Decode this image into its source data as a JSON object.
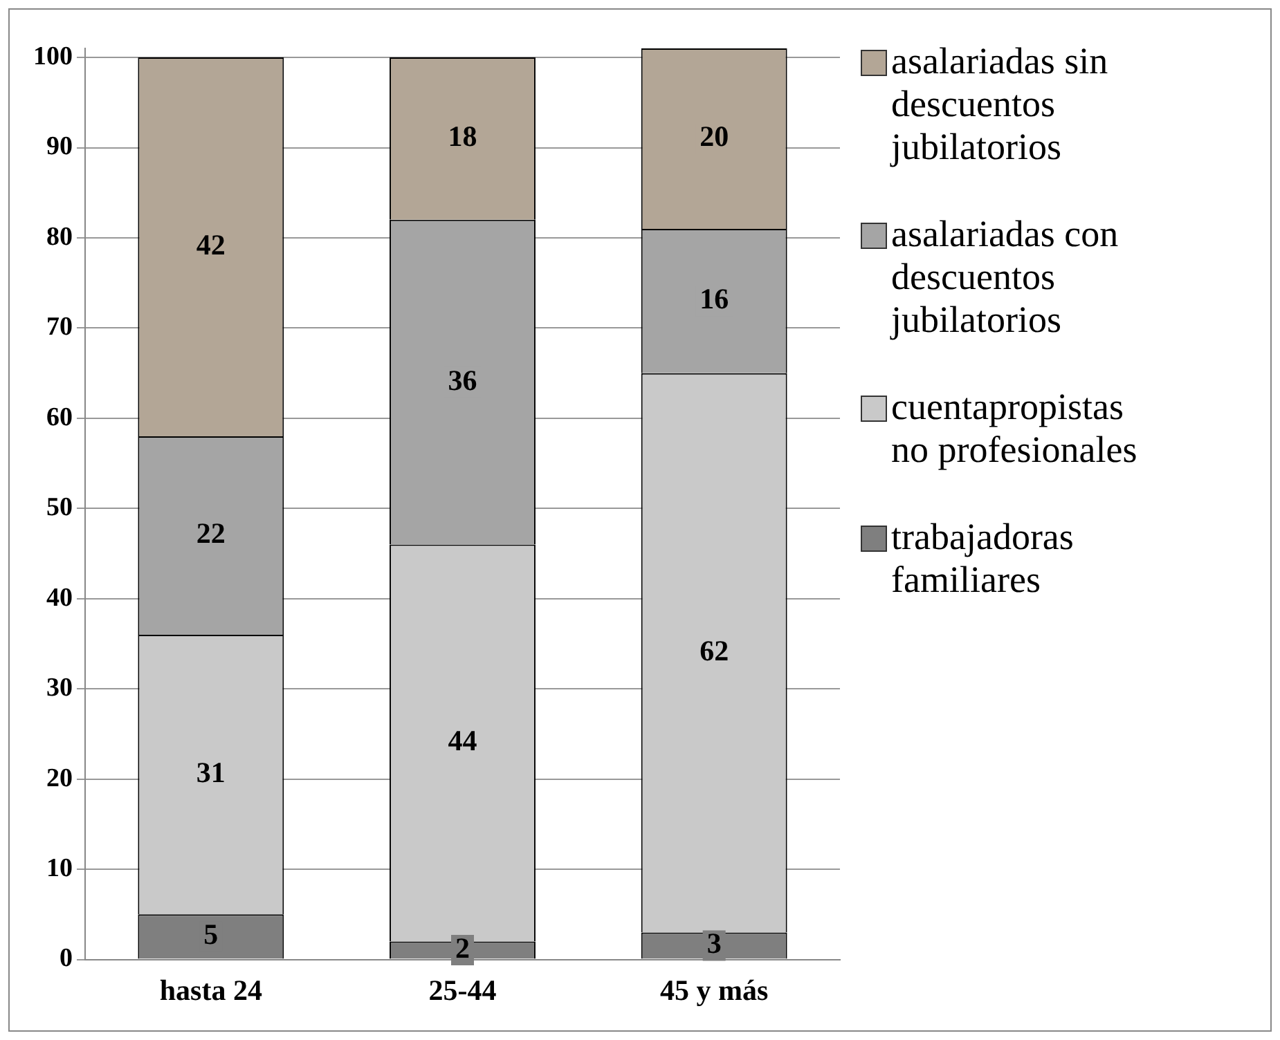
{
  "chart_data": {
    "type": "bar",
    "stacked": true,
    "categories": [
      "hasta 24",
      "25-44",
      "45 y más"
    ],
    "series": [
      {
        "name": "trabajadoras familiares",
        "color": "#7f7f7f",
        "values": [
          5,
          2,
          3
        ]
      },
      {
        "name": "cuentapropistas no profesionales",
        "color": "#c9c9c9",
        "values": [
          31,
          44,
          62
        ]
      },
      {
        "name": "asalariadas con descuentos jubilatorios",
        "color": "#a5a5a5",
        "values": [
          22,
          36,
          16
        ]
      },
      {
        "name": "asalariadas sin descuentos jubilatorios",
        "color": "#b3a696",
        "values": [
          42,
          18,
          20
        ]
      }
    ],
    "ylim": [
      0,
      101
    ],
    "yticks": [
      0,
      10,
      20,
      30,
      40,
      50,
      60,
      70,
      80,
      90,
      100
    ],
    "grid": "y",
    "legend": "right",
    "data_labels": true
  }
}
